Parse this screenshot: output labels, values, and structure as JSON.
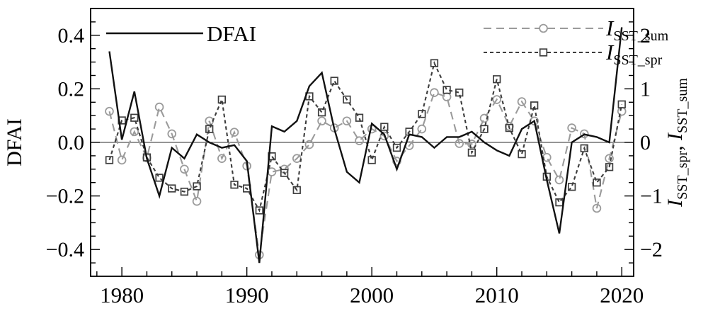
{
  "figure": {
    "background": "#ffffff",
    "border_color": "#000000",
    "zero_line_color": "#2b2b2b"
  },
  "legend": {
    "entries": [
      {
        "id": "dfai",
        "label_parts": [
          {
            "text": "DFAI"
          }
        ]
      },
      {
        "id": "sst_sum",
        "label_parts": [
          {
            "text": "I",
            "italic": true
          },
          {
            "text": "SST_sum",
            "sub": true
          }
        ]
      },
      {
        "id": "sst_spr",
        "label_parts": [
          {
            "text": "I",
            "italic": true
          },
          {
            "text": "SST_spr",
            "sub": true
          }
        ]
      }
    ]
  },
  "axes": {
    "left": {
      "title": "DFAI",
      "tick_labels": [
        "0.4",
        "0.2",
        "0.0",
        "−0.2",
        "−0.4"
      ],
      "tick_values": [
        0.4,
        0.2,
        0,
        -0.2,
        -0.4
      ],
      "minor_step": 0.05,
      "range": [
        -0.5,
        0.5
      ]
    },
    "right": {
      "title_parts": [
        {
          "text": "I",
          "italic": true
        },
        {
          "text": "SST_spr",
          "sub": true
        },
        {
          "text": ", "
        },
        {
          "text": "I",
          "italic": true
        },
        {
          "text": "SST_sum",
          "sub": true
        }
      ],
      "tick_labels": [
        "2",
        "1",
        "0",
        "−1",
        "−2"
      ],
      "tick_values": [
        2,
        1,
        0,
        -1,
        -2
      ],
      "minor_step": 0.25,
      "range": [
        -2.5,
        2.5
      ]
    },
    "x": {
      "tick_labels": [
        "1980",
        "1990",
        "2000",
        "2010",
        "2020"
      ],
      "tick_values": [
        1980,
        1990,
        2000,
        2010,
        2020
      ],
      "minor_start": 1978,
      "minor_end": 2020,
      "minor_step": 2,
      "range": [
        1977.5,
        2020.95
      ]
    }
  },
  "chart_data": {
    "type": "line",
    "title": "",
    "xlabel": "",
    "ylabel_left": "DFAI",
    "ylabel_right": "I_SST_spr, I_SST_sum",
    "x": [
      1979,
      1980,
      1981,
      1982,
      1983,
      1984,
      1985,
      1986,
      1987,
      1988,
      1989,
      1990,
      1991,
      1992,
      1993,
      1994,
      1995,
      1996,
      1997,
      1998,
      1999,
      2000,
      2001,
      2002,
      2003,
      2004,
      2005,
      2006,
      2007,
      2008,
      2009,
      2010,
      2011,
      2012,
      2013,
      2014,
      2015,
      2016,
      2017,
      2018,
      2019,
      2020
    ],
    "xlim": [
      1977.5,
      2020.95
    ],
    "left_ylim": [
      -0.5,
      0.5
    ],
    "right_ylim": [
      -2.5,
      2.5
    ],
    "grid": false,
    "legend_position": "top",
    "series": [
      {
        "name": "I_SST_sum",
        "axis": "right",
        "color": "#9b9b9b",
        "style": "long-dash",
        "marker": "circle",
        "values": [
          0.58,
          -0.33,
          0.2,
          -0.29,
          0.66,
          0.16,
          -0.5,
          -1.1,
          0.4,
          -0.3,
          0.19,
          -0.44,
          -2.1,
          -0.55,
          -0.5,
          -0.3,
          -0.04,
          0.4,
          0.27,
          0.4,
          0.03,
          0.25,
          0.12,
          -0.35,
          -0.06,
          0.25,
          0.93,
          0.85,
          -0.02,
          -0.03,
          0.45,
          0.8,
          0.3,
          0.76,
          0.4,
          -0.28,
          -0.7,
          0.27,
          0.16,
          -1.23,
          -0.3,
          0.58
        ]
      },
      {
        "name": "I_SST_spr",
        "axis": "right",
        "color": "#3d3d3d",
        "style": "dash",
        "marker": "square",
        "values": [
          -0.33,
          0.41,
          0.46,
          -0.28,
          -0.66,
          -0.86,
          -0.92,
          -0.82,
          0.25,
          0.8,
          -0.79,
          -0.86,
          -1.27,
          -0.26,
          -0.57,
          -0.89,
          0.86,
          0.56,
          1.15,
          0.8,
          0.46,
          -0.33,
          0.29,
          -0.1,
          0.2,
          0.53,
          1.48,
          0.98,
          0.93,
          -0.19,
          0.25,
          1.18,
          0.27,
          -0.22,
          0.69,
          -0.64,
          -1.12,
          -0.83,
          -0.11,
          -0.75,
          -0.46,
          0.71
        ]
      },
      {
        "name": "DFAI",
        "axis": "left",
        "color": "#111111",
        "style": "solid",
        "marker": "none",
        "values": [
          0.34,
          0.01,
          0.19,
          -0.06,
          -0.2,
          -0.02,
          -0.06,
          0.03,
          0.0,
          -0.02,
          -0.01,
          -0.07,
          -0.45,
          0.06,
          0.04,
          0.08,
          0.21,
          0.26,
          0.05,
          -0.11,
          -0.15,
          0.07,
          0.03,
          -0.1,
          0.03,
          0.02,
          -0.02,
          0.02,
          0.02,
          0.04,
          0.0,
          -0.03,
          -0.05,
          0.05,
          0.08,
          -0.14,
          -0.34,
          0.0,
          0.03,
          0.02,
          0.0,
          0.43
        ]
      }
    ]
  }
}
